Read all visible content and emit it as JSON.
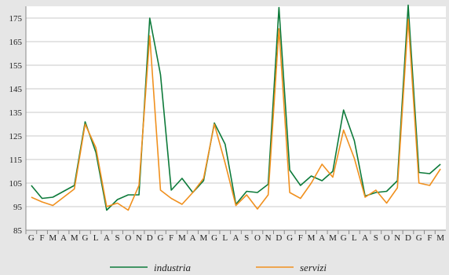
{
  "chart_data": {
    "type": "line",
    "x": [
      "G",
      "F",
      "M",
      "A",
      "M",
      "G",
      "L",
      "A",
      "S",
      "O",
      "N",
      "D",
      "G",
      "F",
      "M",
      "A",
      "M",
      "G",
      "L",
      "A",
      "S",
      "O",
      "N",
      "D",
      "G",
      "F",
      "M",
      "A",
      "M",
      "G",
      "L",
      "A",
      "S",
      "O",
      "N",
      "D",
      "G",
      "F",
      "M"
    ],
    "series": [
      {
        "name": "industria",
        "color": "#0d7a3a",
        "values": [
          104,
          98.5,
          99,
          101.5,
          104,
          131,
          118,
          93.5,
          98,
          100,
          100,
          175,
          151,
          102,
          107,
          101,
          106,
          130.5,
          121.5,
          96,
          101.5,
          101,
          104.5,
          179.5,
          110.5,
          104,
          108,
          106,
          110,
          136,
          123,
          99.5,
          101,
          101.5,
          106,
          180.5,
          109.5,
          109,
          113
        ]
      },
      {
        "name": "servizi",
        "color": "#f0901e",
        "values": [
          99,
          97,
          95.5,
          99,
          102.5,
          130,
          120,
          95,
          96.5,
          93.5,
          104,
          167.5,
          102,
          98.5,
          96,
          101,
          107,
          130,
          113.5,
          95.5,
          100,
          94,
          100,
          170.5,
          101,
          98.5,
          105,
          113,
          107.5,
          127.5,
          115.5,
          99,
          102,
          96.5,
          103,
          174.5,
          105,
          104,
          111
        ]
      }
    ],
    "ylim": [
      85,
      180
    ],
    "yticks": [
      85,
      95,
      105,
      115,
      125,
      135,
      145,
      155,
      165,
      175
    ],
    "grid": true,
    "legend": "bottom"
  }
}
